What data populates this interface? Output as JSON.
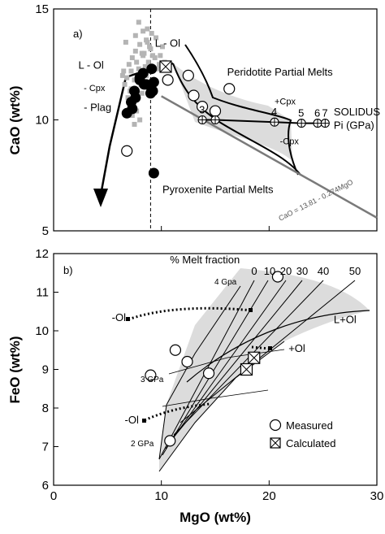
{
  "chart_data": [
    {
      "type": "scatter",
      "panel_label": "a)",
      "xlim": [
        0,
        30
      ],
      "ylim": [
        5,
        15
      ],
      "yticks": [
        5,
        10,
        15
      ],
      "ylabel": "CaO (wt%)",
      "grid": false,
      "vline_x": 9,
      "series": [
        {
          "name": "",
          "marker": "filled-circle",
          "x": [
            6.8,
            7.2,
            7.5,
            8.0,
            8.3,
            8.6,
            9.2,
            9.0,
            8.4,
            7.6,
            7.3,
            8.0,
            9.1,
            9.3
          ],
          "y": [
            10.3,
            10.8,
            11.3,
            11.8,
            12.1,
            11.6,
            11.3,
            11.2,
            11.6,
            11.0,
            10.5,
            11.9,
            12.3,
            11.7
          ]
        },
        {
          "name": "",
          "marker": "filled-circle-outlier",
          "x": [
            9.3
          ],
          "y": [
            7.6
          ]
        },
        {
          "name": "Measured",
          "marker": "open-circle",
          "x": [
            6.8,
            10.6,
            12.5,
            13.0,
            13.8,
            15.0,
            16.3
          ],
          "y": [
            8.6,
            11.8,
            12.0,
            11.1,
            10.6,
            10.4,
            11.4
          ]
        },
        {
          "name": "Calculated",
          "marker": "boxed-x",
          "x": [
            10.4
          ],
          "y": [
            12.4
          ]
        },
        {
          "name": "",
          "marker": "gray-square",
          "x": [
            6.5,
            7.0,
            7.3,
            7.6,
            8.0,
            8.4,
            8.8,
            9.2,
            9.6,
            6.8,
            7.2,
            7.7,
            8.2,
            8.6,
            9.0,
            9.4,
            9.8,
            6.6,
            7.1,
            7.5,
            7.9,
            8.3,
            8.7,
            9.1,
            7.0,
            7.4,
            7.8,
            8.1,
            8.5,
            8.9,
            7.3,
            7.7,
            8.2,
            8.6,
            7.5,
            8.0,
            6.9,
            7.2,
            9.9,
            10.1,
            10.3,
            6.4,
            7.9,
            8.7,
            9.5,
            8.3,
            6.7,
            7.6
          ],
          "y": [
            12.2,
            12.5,
            12.8,
            13.1,
            13.4,
            13.0,
            12.6,
            12.9,
            12.3,
            11.9,
            12.2,
            12.6,
            13.0,
            13.6,
            13.2,
            12.8,
            12.5,
            11.6,
            11.3,
            11.8,
            12.3,
            12.9,
            13.5,
            13.9,
            10.9,
            10.6,
            11.0,
            11.6,
            12.4,
            13.3,
            10.2,
            10.4,
            11.2,
            12.0,
            9.8,
            10.0,
            11.0,
            11.4,
            12.9,
            13.3,
            12.6,
            12.0,
            14.4,
            14.1,
            13.7,
            14.0,
            13.5,
            13.8
          ]
        }
      ],
      "solidus": {
        "x": [
          13.8,
          15.0,
          20.5,
          23.0,
          24.5,
          25.2
        ],
        "y": [
          10.0,
          10.0,
          9.9,
          9.85,
          9.85,
          9.85
        ],
        "point_labels": [
          "3",
          "",
          "4",
          "5",
          "6",
          "7"
        ]
      },
      "overlay_line": {
        "label": "CaO = 13.81 - 0.274MgO",
        "slope": -0.274,
        "intercept": 13.81
      },
      "annotations": [
        {
          "text": "L - Ol",
          "x": 2.3,
          "y": 12.3
        },
        {
          "text": "- Cpx",
          "x": 2.8,
          "y": 11.3
        },
        {
          "text": "- Plag",
          "x": 2.8,
          "y": 10.4
        },
        {
          "text": "L - Ol",
          "x": 9.4,
          "y": 13.3
        },
        {
          "text": "Peridotite Partial Melts",
          "x": 16.1,
          "y": 12.0
        },
        {
          "text": "+Cpx",
          "x": 20.5,
          "y": 10.7
        },
        {
          "text": "SOLIDUS",
          "x": 26.0,
          "y": 10.2
        },
        {
          "text": "Pi (GPa)",
          "x": 26.0,
          "y": 9.6
        },
        {
          "text": "-Cpx",
          "x": 21.0,
          "y": 8.9
        },
        {
          "text": "Pyroxenite Partial Melts",
          "x": 10.1,
          "y": 6.7
        }
      ]
    },
    {
      "type": "scatter",
      "panel_label": "b)",
      "xlim": [
        0,
        30
      ],
      "ylim": [
        6,
        12
      ],
      "xticks": [
        0,
        10,
        20,
        30
      ],
      "yticks": [
        6,
        7,
        8,
        9,
        10,
        11,
        12
      ],
      "xlabel": "MgO (wt%)",
      "ylabel": "FeO (wt%)",
      "grid": false,
      "series": [
        {
          "name": "Measured",
          "marker": "open-circle",
          "x": [
            11.3,
            12.4,
            9.0,
            14.4,
            20.8,
            10.8
          ],
          "y": [
            9.5,
            9.2,
            8.85,
            8.9,
            11.4,
            7.15
          ]
        },
        {
          "name": "Calculated",
          "marker": "boxed-x",
          "x": [
            18.6,
            17.9
          ],
          "y": [
            9.3,
            9.0
          ]
        }
      ],
      "melt_fraction_labels": [
        "0",
        "10",
        "20",
        "30",
        "40",
        "50"
      ],
      "pressure_labels": [
        "2 GPa",
        "3 GPa",
        "4 Gpa"
      ],
      "annotations": [
        {
          "text": "% Melt fraction",
          "x": 10.8,
          "y": 11.75
        },
        {
          "text": "-Ol",
          "x": 5.4,
          "y": 10.25
        },
        {
          "text": "-Ol",
          "x": 6.6,
          "y": 7.6
        },
        {
          "text": "+Ol",
          "x": 21.8,
          "y": 9.45
        },
        {
          "text": "L+Ol",
          "x": 26.0,
          "y": 10.2
        }
      ]
    }
  ],
  "legend": {
    "items": [
      {
        "label": "Measured",
        "marker": "open-circle"
      },
      {
        "label": "Calculated",
        "marker": "boxed-x"
      }
    ]
  }
}
